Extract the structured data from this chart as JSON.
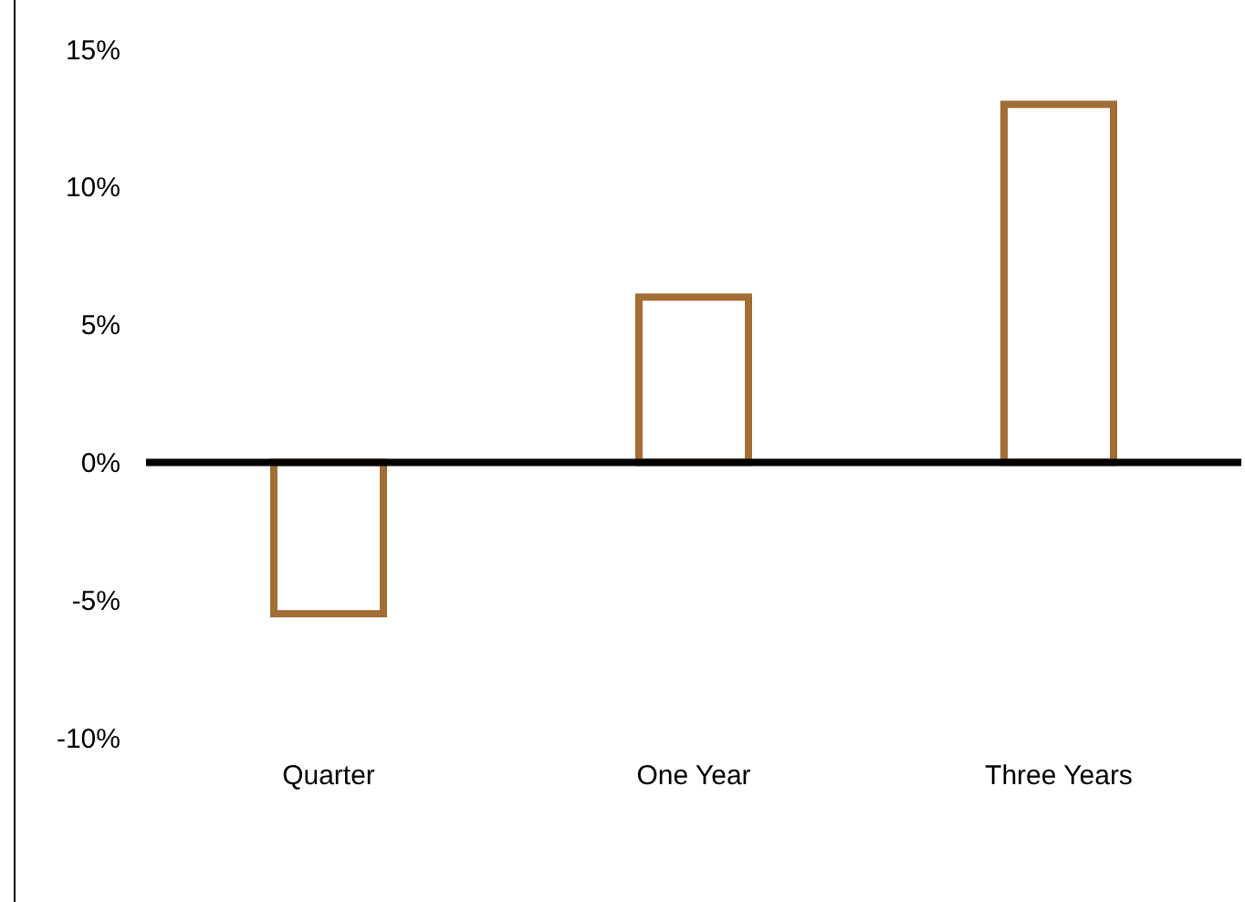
{
  "chart_data": {
    "type": "bar",
    "categories": [
      "Quarter",
      "One Year",
      "Three Years"
    ],
    "series": [
      {
        "color": "#a36d36",
        "values": [
          -5.5,
          6,
          13
        ]
      }
    ],
    "ylim": [
      -10,
      15
    ],
    "yticks": [
      {
        "value": -10,
        "label": "-10%"
      },
      {
        "value": -5,
        "label": "-5%"
      },
      {
        "value": 0,
        "label": "0%"
      },
      {
        "value": 5,
        "label": "5%"
      },
      {
        "value": 10,
        "label": "10%"
      },
      {
        "value": 15,
        "label": "15%"
      }
    ]
  }
}
